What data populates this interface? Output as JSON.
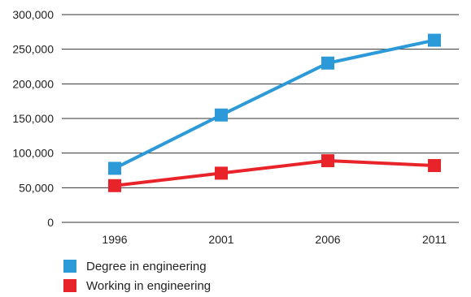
{
  "chart_data": {
    "type": "line",
    "title": "",
    "xlabel": "",
    "ylabel": "",
    "categories": [
      "1996",
      "2001",
      "2006",
      "2011"
    ],
    "ylim": [
      0,
      300000
    ],
    "y_ticks": [
      0,
      50000,
      100000,
      150000,
      200000,
      250000,
      300000
    ],
    "y_tick_labels": [
      "0",
      "50,000",
      "100,000",
      "150,000",
      "200,000",
      "250,000",
      "300,000"
    ],
    "grid": true,
    "legend_position": "bottom-left",
    "series": [
      {
        "name": "Degree in engineering",
        "color": "#2c9ad8",
        "values": [
          78000,
          155000,
          230000,
          263000
        ]
      },
      {
        "name": "Working in engineering",
        "color": "#e8242a",
        "values": [
          53000,
          71000,
          89000,
          82000
        ]
      }
    ]
  }
}
